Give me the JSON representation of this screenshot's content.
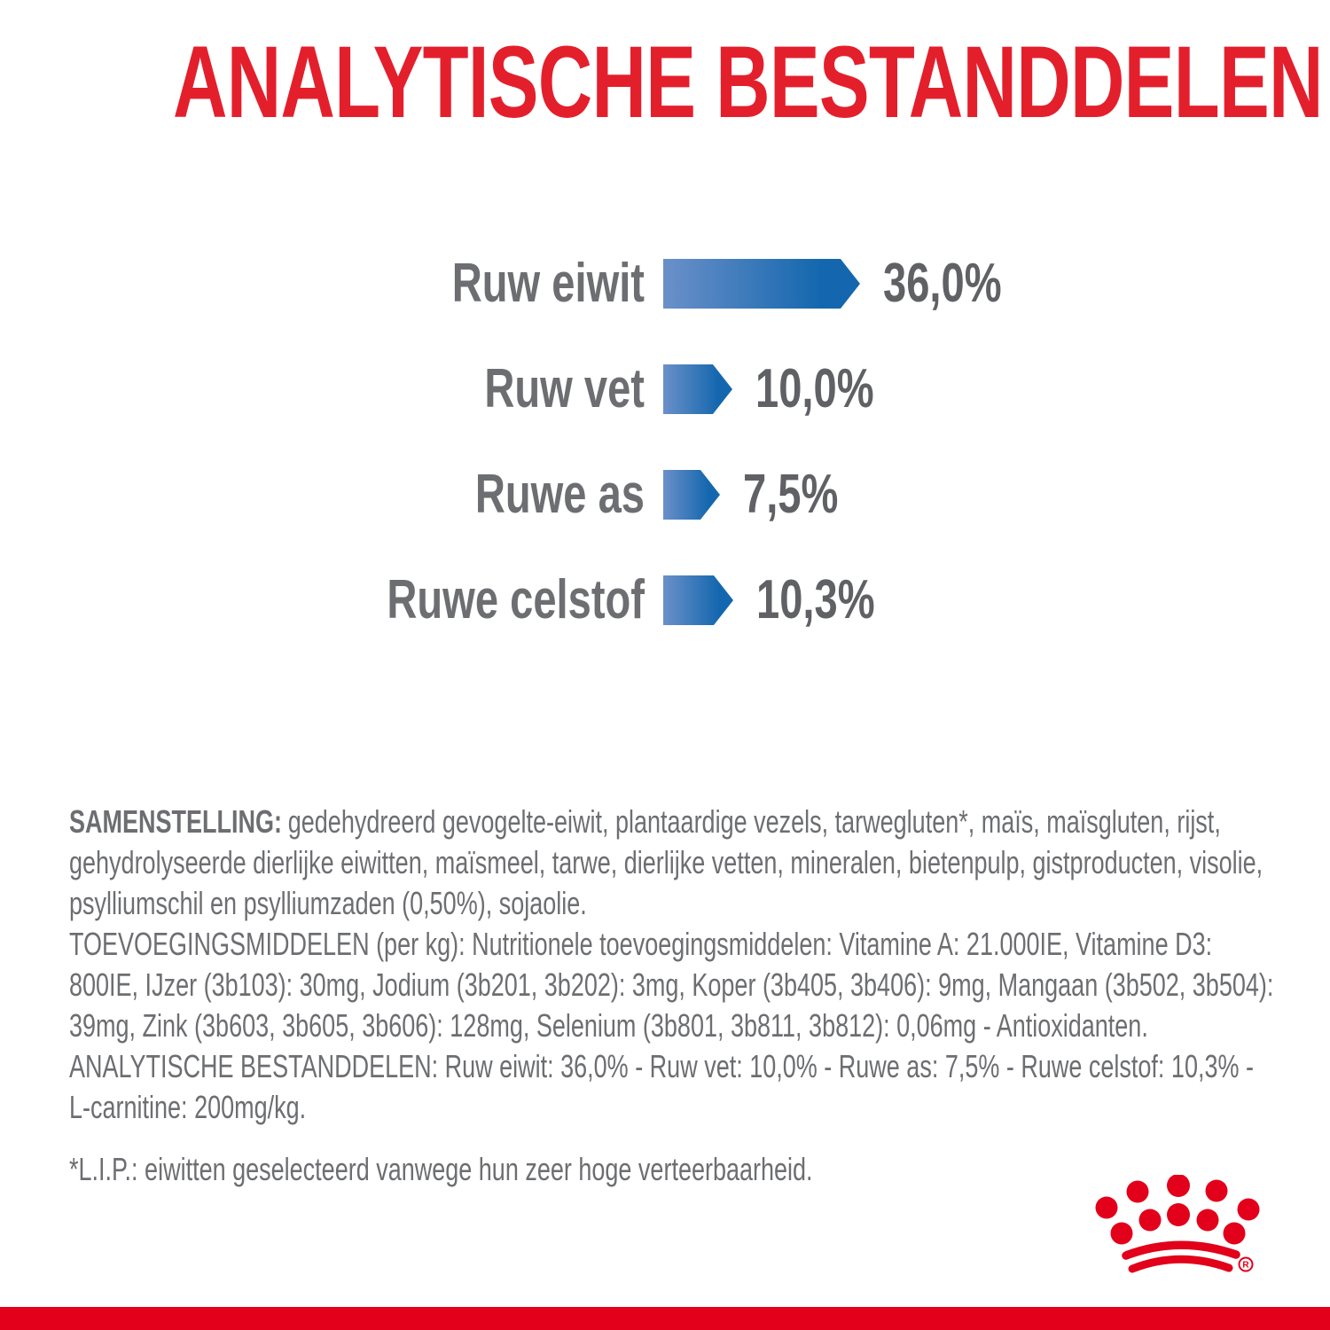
{
  "page": {
    "title": "ANALYTISCHE BESTANDDELEN",
    "colors": {
      "title_red": "#e41f2c",
      "brand_red": "#e2001a",
      "bar_blue_light": "#6b90c9",
      "bar_blue_dark": "#1467ae",
      "label_gray": "#6d6e71",
      "value_gray": "#606165",
      "text_gray": "#6d6e71"
    }
  },
  "chart_data": {
    "type": "bar",
    "orientation": "horizontal",
    "title": "ANALYTISCHE BESTANDDELEN",
    "categories": [
      "Ruw eiwit",
      "Ruw vet",
      "Ruwe as",
      "Ruwe celstof"
    ],
    "values": [
      36.0,
      10.0,
      7.5,
      10.3
    ],
    "value_labels": [
      "36,0%",
      "10,0%",
      "7,5%",
      "10,3%"
    ],
    "unit": "%",
    "xlim": [
      0,
      40
    ],
    "grid": false,
    "bar_style": "right-pointing arrow, blue gradient light-to-dark, value label right of bar"
  },
  "composition": {
    "lead": "SAMENSTELLING:",
    "text": "gedehydreerd gevogelte-eiwit, plantaardige vezels, tarwegluten*, maïs, maïsgluten, rijst, gehydrolyseerde dierlijke eiwitten, maïsmeel, tarwe, dierlijke vetten, mineralen, bietenpulp, gistproducten, visolie, psylliumschil en psylliumzaden (0,50%), sojaolie."
  },
  "additives": "TOEVOEGINGSMIDDELEN (per kg): Nutritionele toevoegingsmiddelen: Vitamine A: 21.000IE, Vitamine D3: 800IE, IJzer (3b103): 30mg, Jodium (3b201, 3b202): 3mg, Koper (3b405, 3b406): 9mg, Mangaan (3b502, 3b504): 39mg, Zink (3b603, 3b605, 3b606): 128mg, Selenium (3b801, 3b811, 3b812): 0,06mg - Antioxidanten.",
  "analytical_line": "ANALYTISCHE BESTANDDELEN: Ruw eiwit: 36,0% - Ruw vet: 10,0% - Ruwe as: 7,5% - Ruwe celstof: 10,3% - L-carnitine: 200mg/kg.",
  "footnote": "*L.I.P.: eiwitten geselecteerd vanwege hun zeer hoge verteerbaarheid.",
  "logo": {
    "icon": "royal-canin-crown-icon",
    "registered_mark": "R"
  }
}
